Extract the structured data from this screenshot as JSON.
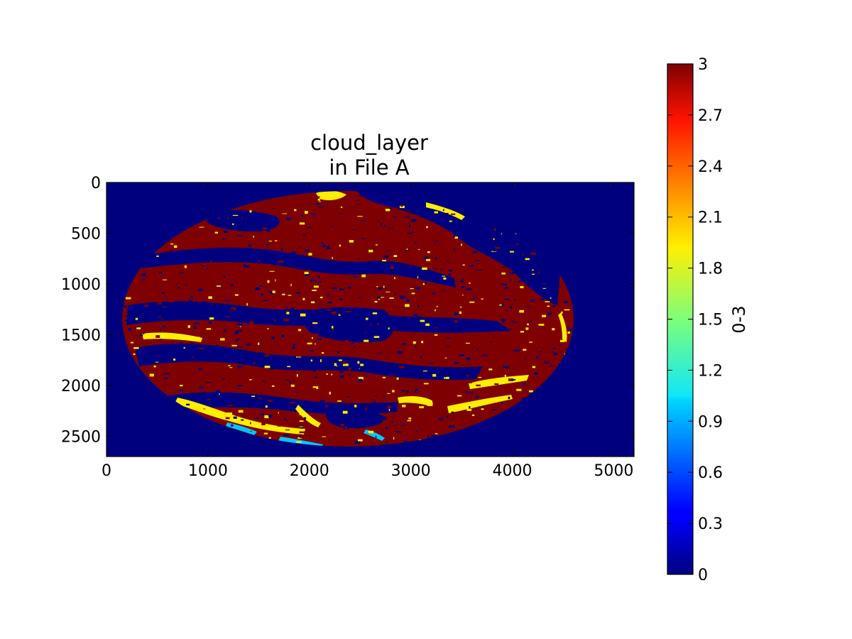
{
  "chart_data": {
    "type": "heatmap",
    "title": "cloud_layer\nin File A",
    "title_lines": [
      "cloud_layer",
      "in File A"
    ],
    "x_ticks": [
      "0",
      "1000",
      "2000",
      "3000",
      "4000",
      "5000"
    ],
    "y_ticks": [
      "0",
      "500",
      "1000",
      "1500",
      "2000",
      "2500"
    ],
    "xlim": [
      0,
      5200
    ],
    "ylim": [
      2700,
      0
    ],
    "grid": false,
    "colormap": "jet",
    "colorbar": {
      "label": "0-3",
      "range": [
        0,
        3
      ],
      "ticks": [
        "0",
        "0.3",
        "0.6",
        "0.9",
        "1.2",
        "1.5",
        "1.8",
        "2.1",
        "2.4",
        "2.7",
        "3"
      ]
    },
    "regions": {
      "background": {
        "value": 0,
        "note": "outside disk"
      },
      "dominant_value": 3,
      "secondary_values": [
        0,
        2,
        1
      ]
    },
    "colors": {
      "value_0": "#00007f",
      "value_1": "#00c8ff",
      "value_2": "#ffee00",
      "value_3": "#7f0000"
    }
  }
}
